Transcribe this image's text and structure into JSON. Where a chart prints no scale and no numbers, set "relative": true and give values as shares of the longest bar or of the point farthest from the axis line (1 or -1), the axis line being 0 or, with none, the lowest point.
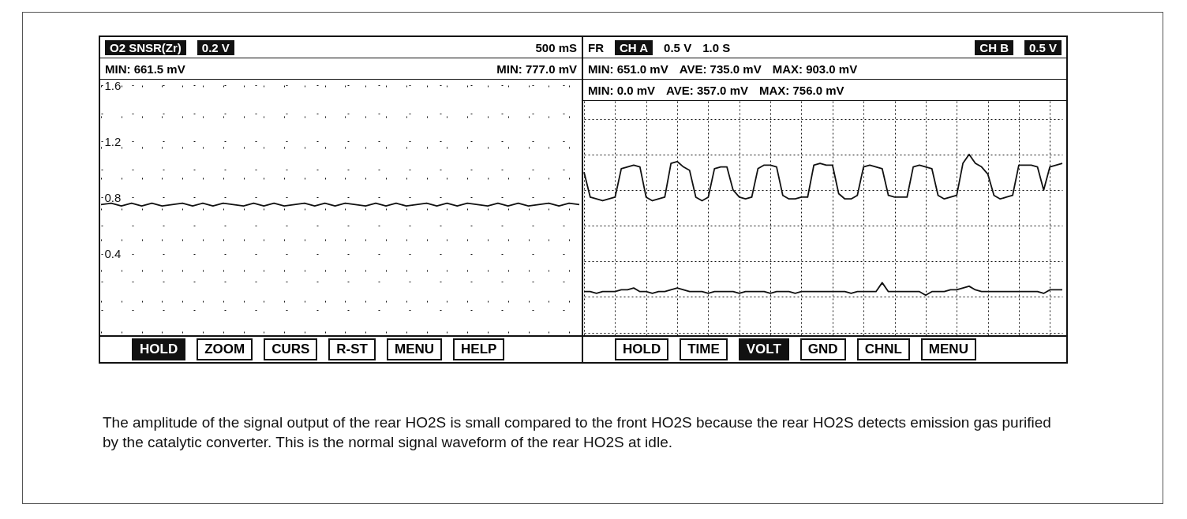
{
  "chart_data": [
    {
      "type": "line",
      "title": "O2 SNSR(Zr)",
      "tick_labels": "y",
      "grid": true,
      "annotations": [
        "0.2 V",
        "500 mS",
        "MIN:  661.5 mV",
        "MIN:  777.0 mV",
        "HOLD",
        "ZOOM",
        "CURS",
        "R-ST",
        "MENU",
        "HELP"
      ],
      "categories": [
        null,
        null,
        null,
        null,
        null,
        null,
        null,
        null,
        null,
        null,
        null,
        null,
        null,
        null,
        null,
        null,
        null,
        null,
        null,
        null,
        null,
        null,
        null,
        null,
        null,
        null,
        null,
        null,
        null,
        null,
        null,
        null,
        null,
        null,
        null,
        null,
        null,
        null,
        null,
        null,
        null,
        null,
        null,
        null,
        null,
        null,
        null,
        null
      ],
      "ylim": [
        -0.18,
        1.6
      ],
      "yticks": [
        {
          "value": 0,
          "label": null
        },
        {
          "value": 0.2,
          "label": null
        },
        0.4,
        {
          "value": 0.6,
          "label": null
        },
        0.8,
        {
          "value": 1.0,
          "label": null
        },
        1.2,
        {
          "value": 1.4,
          "label": null
        },
        1.6
      ],
      "series": [
        {
          "color": "#111111",
          "values": [
            0.75,
            0.76,
            0.74,
            0.76,
            0.74,
            0.76,
            0.74,
            0.75,
            0.76,
            0.74,
            0.76,
            0.74,
            0.76,
            0.75,
            0.74,
            0.76,
            0.74,
            0.76,
            0.74,
            0.75,
            0.76,
            0.74,
            0.76,
            0.74,
            0.76,
            0.75,
            0.74,
            0.76,
            0.74,
            0.76,
            0.74,
            0.75,
            0.76,
            0.74,
            0.76,
            0.74,
            0.76,
            0.75,
            0.74,
            0.76,
            0.74,
            0.76,
            0.74,
            0.75,
            0.76,
            0.74,
            0.76,
            0.75
          ]
        }
      ]
    },
    {
      "type": "line",
      "title": "FR",
      "relative": true,
      "tick_labels": false,
      "grid": true,
      "annotations": [
        "CH A",
        "0.5 V",
        "1.0 S",
        "CH B",
        "0.5 V",
        "MIN:  651.0 mV",
        "AVE:  735.0 mV",
        "MAX:  903.0 mV",
        "MIN:  0.0 mV",
        "AVE:  357.0 mV",
        "MAX:  756.0 mV",
        "HOLD",
        "TIME",
        "VOLT",
        "GND",
        "CHNL",
        "MENU",
        "The amplitude of the signal output of the rear HO2S is small compared to the front HO2S because the rear HO2S detects emission gas purified by the catalytic converter.  This is the normal signal waveform of the rear HO2S at idle."
      ],
      "categories": [
        null,
        null,
        null,
        null,
        null,
        null,
        null,
        null,
        null,
        null,
        null,
        null,
        null,
        null,
        null,
        null,
        null,
        null,
        null,
        null,
        null,
        null,
        null,
        null,
        null,
        null,
        null,
        null,
        null,
        null,
        null,
        null,
        null,
        null,
        null,
        null,
        null,
        null,
        null,
        null,
        null,
        null,
        null,
        null,
        null,
        null,
        null,
        null,
        null,
        null,
        null,
        null,
        null,
        null,
        null,
        null,
        null,
        null,
        null,
        null,
        null,
        null,
        null,
        null,
        null,
        null,
        null,
        null,
        null,
        null,
        null,
        null,
        null,
        null,
        null,
        null,
        null,
        null
      ],
      "series": [
        {
          "color": "#111111",
          "values": [
            0.9,
            0.76,
            0.75,
            0.74,
            0.75,
            0.76,
            0.92,
            0.93,
            0.94,
            0.93,
            0.76,
            0.74,
            0.75,
            0.76,
            0.95,
            0.96,
            0.93,
            0.91,
            0.76,
            0.74,
            0.76,
            0.92,
            0.93,
            0.93,
            0.8,
            0.76,
            0.75,
            0.76,
            0.92,
            0.94,
            0.94,
            0.93,
            0.77,
            0.75,
            0.75,
            0.76,
            0.76,
            0.94,
            0.95,
            0.94,
            0.94,
            0.78,
            0.75,
            0.75,
            0.77,
            0.93,
            0.94,
            0.93,
            0.92,
            0.77,
            0.76,
            0.76,
            0.76,
            0.93,
            0.94,
            0.93,
            0.92,
            0.77,
            0.75,
            0.76,
            0.77,
            0.95,
            1,
            0.95,
            0.93,
            0.89,
            0.77,
            0.75,
            0.76,
            0.77,
            0.94,
            0.94,
            0.94,
            0.93,
            0.8,
            0.93,
            0.94,
            0.95
          ]
        },
        {
          "color": "#111111",
          "values": [
            0.23,
            0.23,
            0.22,
            0.23,
            0.23,
            0.23,
            0.24,
            0.24,
            0.25,
            0.23,
            0.23,
            0.22,
            0.23,
            0.23,
            0.24,
            0.25,
            0.24,
            0.23,
            0.23,
            0.23,
            0.22,
            0.23,
            0.23,
            0.23,
            0.23,
            0.22,
            0.23,
            0.23,
            0.23,
            0.23,
            0.22,
            0.23,
            0.23,
            0.23,
            0.22,
            0.23,
            0.23,
            0.23,
            0.23,
            0.23,
            0.23,
            0.23,
            0.23,
            0.22,
            0.23,
            0.23,
            0.23,
            0.23,
            0.28,
            0.23,
            0.23,
            0.23,
            0.23,
            0.23,
            0.23,
            0.21,
            0.23,
            0.23,
            0.23,
            0.24,
            0.24,
            0.25,
            0.26,
            0.24,
            0.23,
            0.23,
            0.23,
            0.23,
            0.23,
            0.23,
            0.23,
            0.23,
            0.23,
            0.23,
            0.22,
            0.24,
            0.24,
            0.24
          ]
        }
      ]
    }
  ]
}
